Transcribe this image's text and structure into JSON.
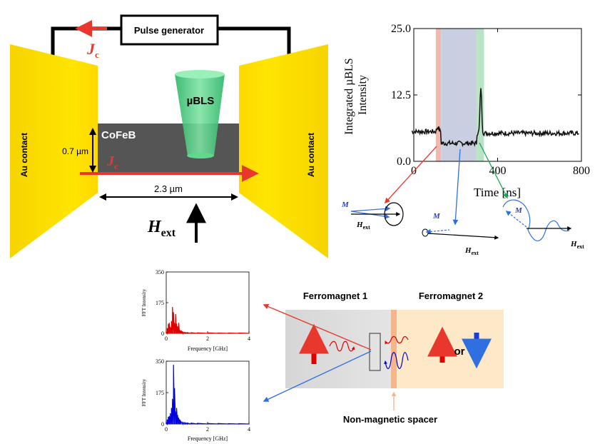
{
  "device": {
    "pulse_generator_label": "Pulse generator",
    "current_symbol": "J",
    "current_subscript": "c",
    "au_contact_left": "Au contact",
    "au_contact_right": "Au contact",
    "film_label": "CoFeB",
    "thickness_label": "0.7 µm",
    "width_label": "2.3 µm",
    "probe_label": "µBLS",
    "field_symbol": "H",
    "field_subscript": "ext"
  },
  "main_chart": {
    "type": "line",
    "ylabel_line1": "Integrated µBLS",
    "ylabel_line2": "Intensity",
    "xlabel": "Time [ns]",
    "xlim": [
      0,
      800
    ],
    "ylim": [
      0,
      25
    ],
    "xticks": [
      "0",
      "400",
      "800"
    ],
    "yticks": [
      "0.0",
      "12.5",
      "25.0"
    ],
    "bands": [
      {
        "from": 105,
        "to": 130,
        "color": "#f2b8b0"
      },
      {
        "from": 130,
        "to": 300,
        "color": "#c9cfe0"
      },
      {
        "from": 300,
        "to": 335,
        "color": "#b8e3c6"
      }
    ],
    "baseline_before": 5.6,
    "baseline_pulse": 3.4,
    "baseline_after": 5.3,
    "peak1": {
      "x": 115,
      "y": 6.5
    },
    "peak2": {
      "x": 320,
      "y": 14.0
    }
  },
  "precession": {
    "m_label": "M",
    "h_symbol": "H",
    "h_subscript": "ext",
    "colors": {
      "red": "#e8382e",
      "blue": "#2f6fe0",
      "green": "#1da659"
    }
  },
  "fft_top": {
    "type": "line",
    "ylabel": "FFT Intensity",
    "xlabel": "Frequency [GHz]",
    "yticks": [
      "0",
      "175",
      "350"
    ],
    "xticks": [
      "0",
      "2",
      "4"
    ],
    "xlim": [
      0,
      4
    ],
    "ylim": [
      0,
      350
    ],
    "color": "#e00000",
    "x": [
      0.0,
      0.05,
      0.1,
      0.15,
      0.2,
      0.25,
      0.3,
      0.35,
      0.4,
      0.45,
      0.5,
      0.55,
      0.6,
      0.65,
      0.7,
      0.75,
      0.8,
      0.9,
      1.0,
      1.2,
      1.5,
      2.0,
      2.5,
      3.0,
      3.5,
      4.0
    ],
    "y": [
      10,
      30,
      55,
      60,
      35,
      70,
      150,
      120,
      60,
      110,
      55,
      40,
      60,
      20,
      15,
      10,
      8,
      6,
      5,
      4,
      3,
      3,
      2,
      2,
      2,
      2
    ]
  },
  "fft_bottom": {
    "type": "line",
    "ylabel": "FFT Intensity",
    "xlabel": "Frequency [GHz]",
    "yticks": [
      "0",
      "175",
      "350"
    ],
    "xticks": [
      "0",
      "2",
      "4"
    ],
    "xlim": [
      0,
      4
    ],
    "ylim": [
      0,
      350
    ],
    "color": "#0000dd",
    "x": [
      0.0,
      0.05,
      0.1,
      0.15,
      0.2,
      0.25,
      0.3,
      0.35,
      0.4,
      0.45,
      0.5,
      0.55,
      0.6,
      0.65,
      0.7,
      0.8,
      0.9,
      1.0,
      1.2,
      1.5,
      2.0,
      2.5,
      3.0,
      3.5,
      4.0
    ],
    "y": [
      10,
      25,
      40,
      45,
      60,
      90,
      140,
      330,
      200,
      70,
      90,
      50,
      35,
      25,
      15,
      10,
      8,
      6,
      5,
      4,
      3,
      3,
      2,
      2,
      2
    ]
  },
  "layers": {
    "fm1_label": "Ferromagnet 1",
    "fm2_label": "Ferromagnet 2",
    "or_label": "or",
    "spacer_label": "Non-magnetic spacer"
  }
}
